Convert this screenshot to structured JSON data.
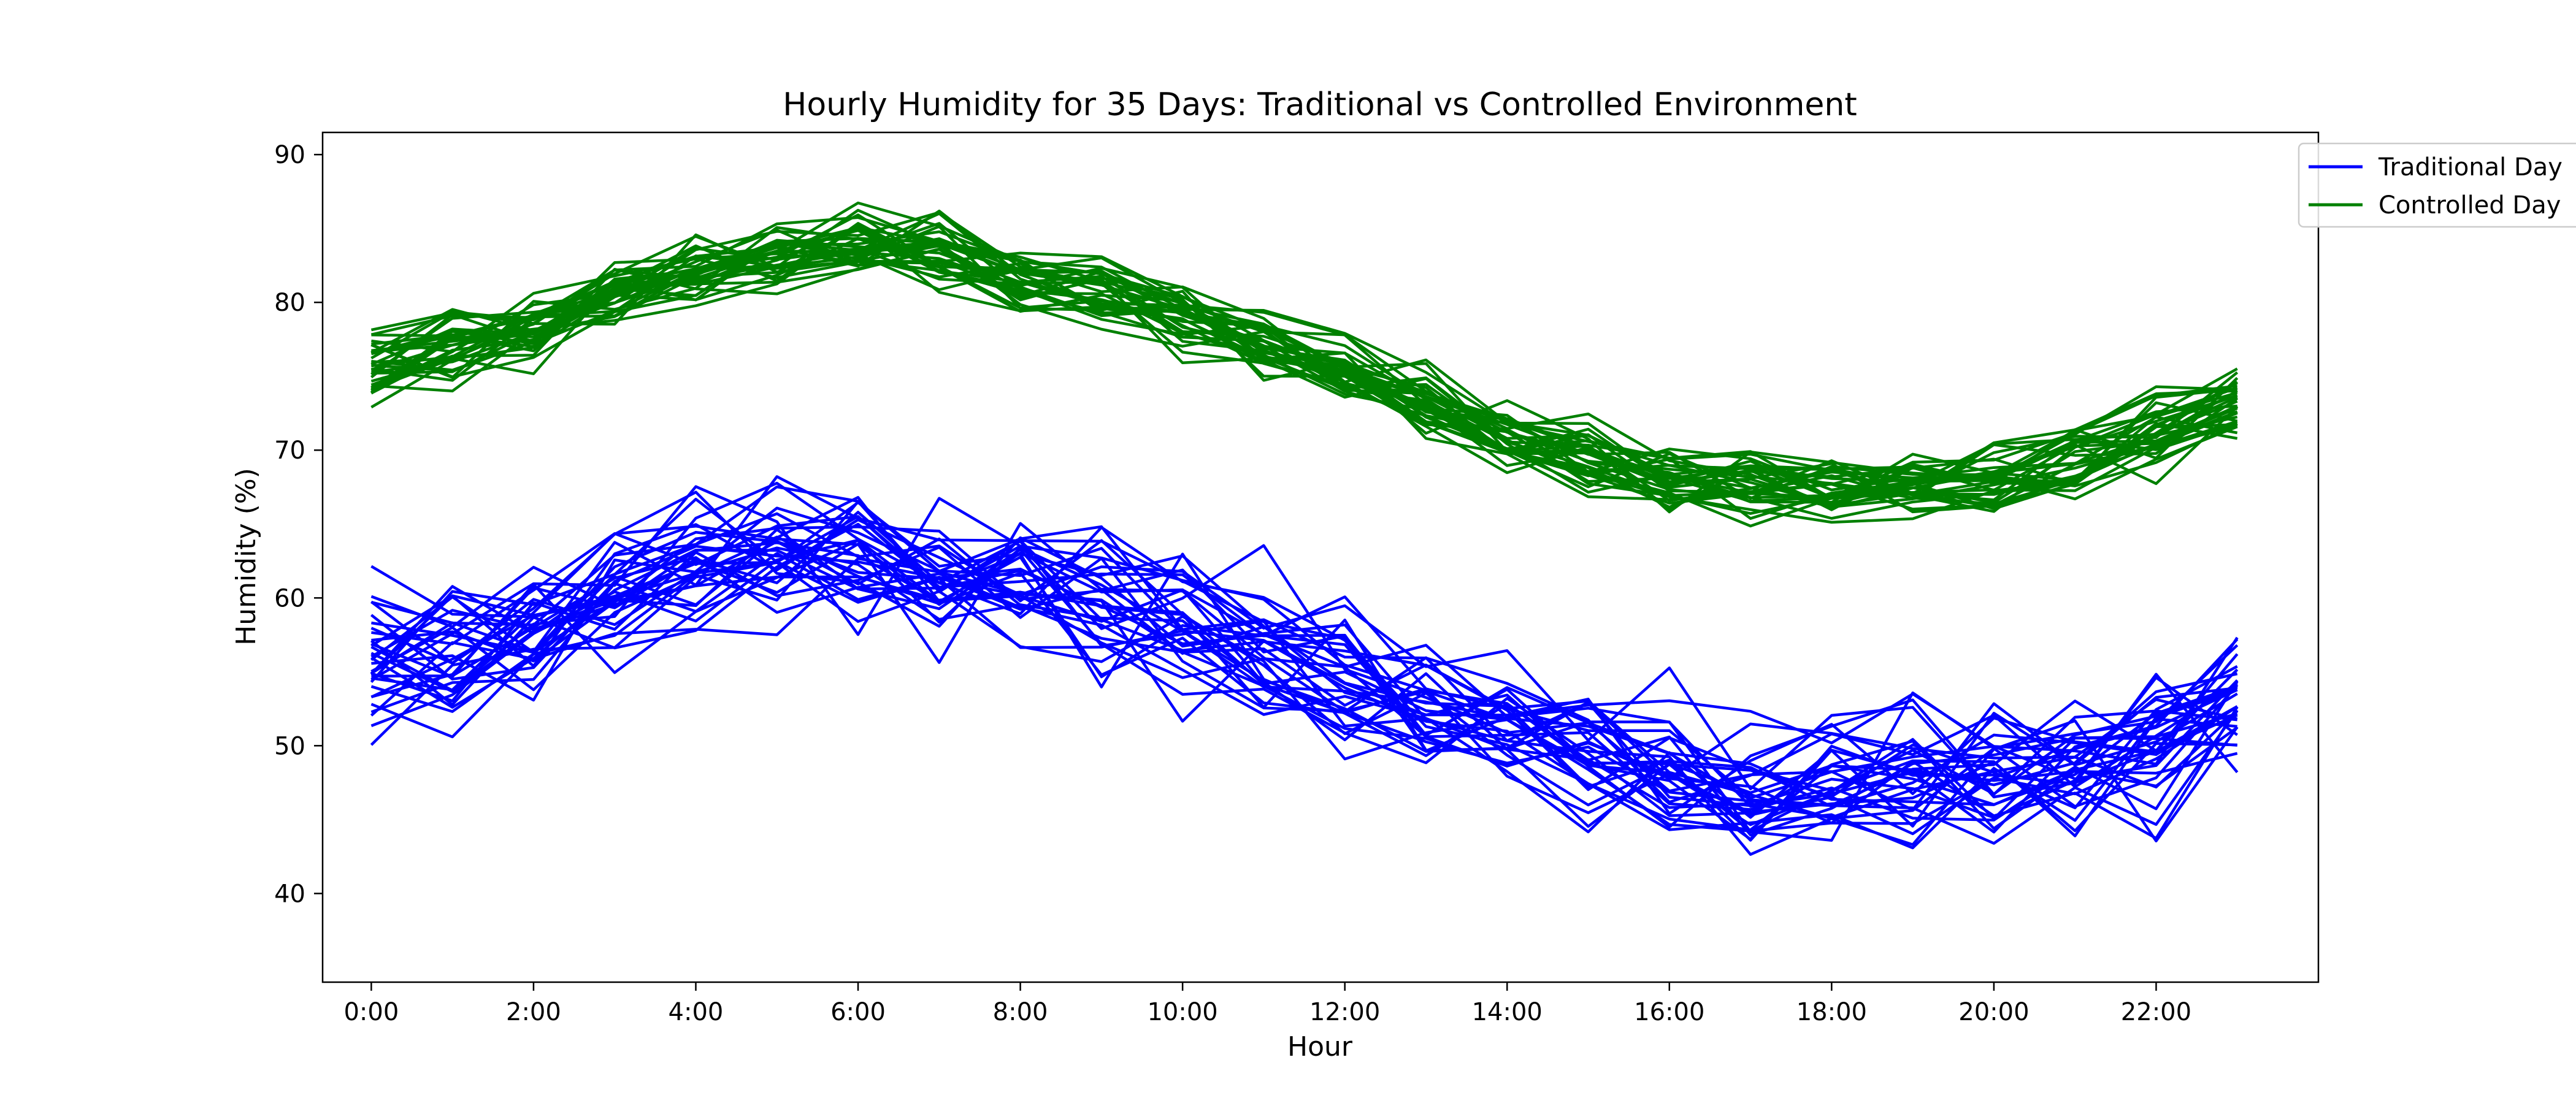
{
  "chart_data": {
    "type": "line",
    "title": "Hourly Humidity for 35 Days: Traditional vs Controlled Environment",
    "xlabel": "Hour",
    "ylabel": "Humidity (%)",
    "x": [
      0,
      1,
      2,
      3,
      4,
      5,
      6,
      7,
      8,
      9,
      10,
      11,
      12,
      13,
      14,
      15,
      16,
      17,
      18,
      19,
      20,
      21,
      22,
      23
    ],
    "x_ticks": [
      0,
      2,
      4,
      6,
      8,
      10,
      12,
      14,
      16,
      18,
      20,
      22
    ],
    "x_tick_labels": [
      "0:00",
      "2:00",
      "4:00",
      "6:00",
      "8:00",
      "10:00",
      "12:00",
      "14:00",
      "16:00",
      "18:00",
      "20:00",
      "22:00"
    ],
    "ylim": [
      34,
      91.5
    ],
    "y_ticks": [
      40,
      50,
      60,
      70,
      80,
      90
    ],
    "y_tick_labels": [
      "40",
      "50",
      "60",
      "70",
      "80",
      "90"
    ],
    "days": 35,
    "series": [
      {
        "name": "Traditional Day",
        "color": "#0000ff",
        "mean_profile": [
          55.5,
          56.5,
          58,
          60,
          62.5,
          63,
          62.5,
          61.5,
          61,
          60,
          58.5,
          57,
          55,
          53,
          51,
          49.5,
          48,
          47,
          47.5,
          48.5,
          49,
          48.5,
          50.5,
          53.5
        ],
        "noise_amplitude": 4.5,
        "seed": 7
      },
      {
        "name": "Controlled Day",
        "color": "#008000",
        "mean_profile": [
          75.5,
          77,
          78.5,
          80.5,
          82,
          83,
          84,
          83.5,
          82,
          80.5,
          79,
          77,
          75,
          73,
          71,
          69.5,
          68,
          67.5,
          67,
          67.5,
          68,
          69,
          71.5,
          73
        ],
        "noise_amplitude": 2.2,
        "seed": 13
      }
    ],
    "legend": {
      "placement": "top-right (outside axes)",
      "entries": [
        "Traditional Day",
        "Controlled Day"
      ]
    },
    "grid": false
  }
}
